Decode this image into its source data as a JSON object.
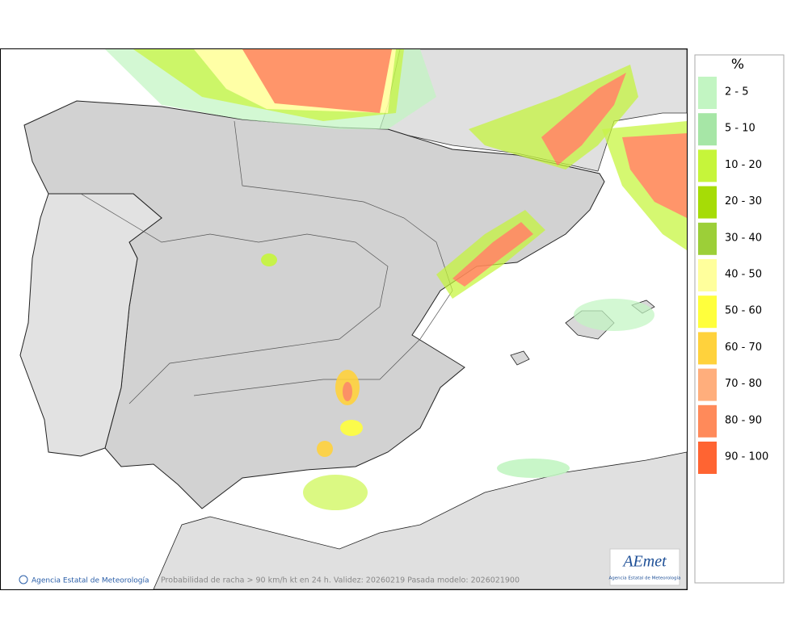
{
  "legend": {
    "title": "%",
    "items": [
      {
        "label": "2 - 5",
        "color": "#c2f5c2"
      },
      {
        "label": "5 - 10",
        "color": "#a6e6a6"
      },
      {
        "label": "10 - 20",
        "color": "#c6f53a"
      },
      {
        "label": "20 - 30",
        "color": "#a6dc06"
      },
      {
        "label": "30 - 40",
        "color": "#9ccf38"
      },
      {
        "label": "40 - 50",
        "color": "#ffff9c"
      },
      {
        "label": "50 - 60",
        "color": "#ffff3c"
      },
      {
        "label": "60 - 70",
        "color": "#ffd23c"
      },
      {
        "label": "70 - 80",
        "color": "#ffae7c"
      },
      {
        "label": "80 - 90",
        "color": "#ff8a5a"
      },
      {
        "label": "90 - 100",
        "color": "#ff6432"
      }
    ]
  },
  "map": {
    "credit": "Agencia Estatal de Meteorología",
    "caption": "Probabilidad de racha > 90 km/h kt en 24 h. Validez: 20260219 Pasada modelo: 2026021900",
    "logo": {
      "name": "AEmet",
      "subtitle": "Agencia Estatal de Meteorología"
    }
  }
}
